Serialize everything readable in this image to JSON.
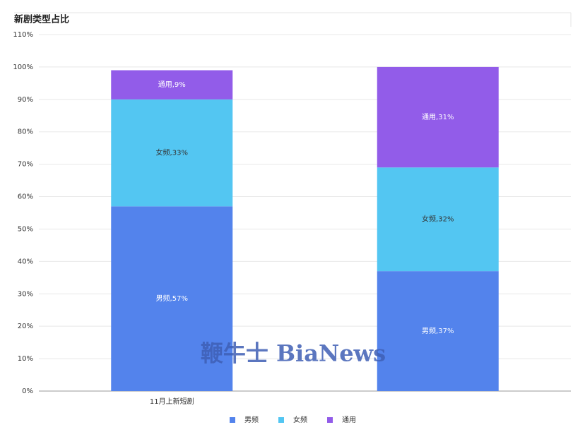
{
  "chart_data": {
    "type": "bar",
    "stacked": true,
    "title": "新剧类型占比",
    "categories": [
      "11月上新短剧",
      null
    ],
    "series": [
      {
        "name": "男频",
        "color": "#5383ec",
        "values": [
          57,
          37
        ],
        "value_labels": [
          "男频,57%",
          "男频,37%"
        ]
      },
      {
        "name": "女频",
        "color": "#53c6f2",
        "values": [
          33,
          32
        ],
        "value_labels": [
          "女频,33%",
          "女频,32%"
        ]
      },
      {
        "name": "通用",
        "color": "#925ce9",
        "values": [
          9,
          31
        ],
        "value_labels": [
          "通用,9%",
          "通用,31%"
        ]
      }
    ],
    "ylim": [
      0,
      110
    ],
    "yticks": [
      {
        "value": 0,
        "label": "0%"
      },
      {
        "value": 10,
        "label": "10%"
      },
      {
        "value": 20,
        "label": "20%"
      },
      {
        "value": 30,
        "label": "30%"
      },
      {
        "value": 40,
        "label": "40%"
      },
      {
        "value": 50,
        "label": "50%"
      },
      {
        "value": 60,
        "label": "60%"
      },
      {
        "value": 70,
        "label": "70%"
      },
      {
        "value": 80,
        "label": "80%"
      },
      {
        "value": 90,
        "label": "90%"
      },
      {
        "value": 100,
        "label": "100%"
      },
      {
        "value": 110,
        "label": "110%"
      }
    ],
    "grid": true,
    "legend": "bottom",
    "watermark": "鞭牛士 BiaNews"
  }
}
